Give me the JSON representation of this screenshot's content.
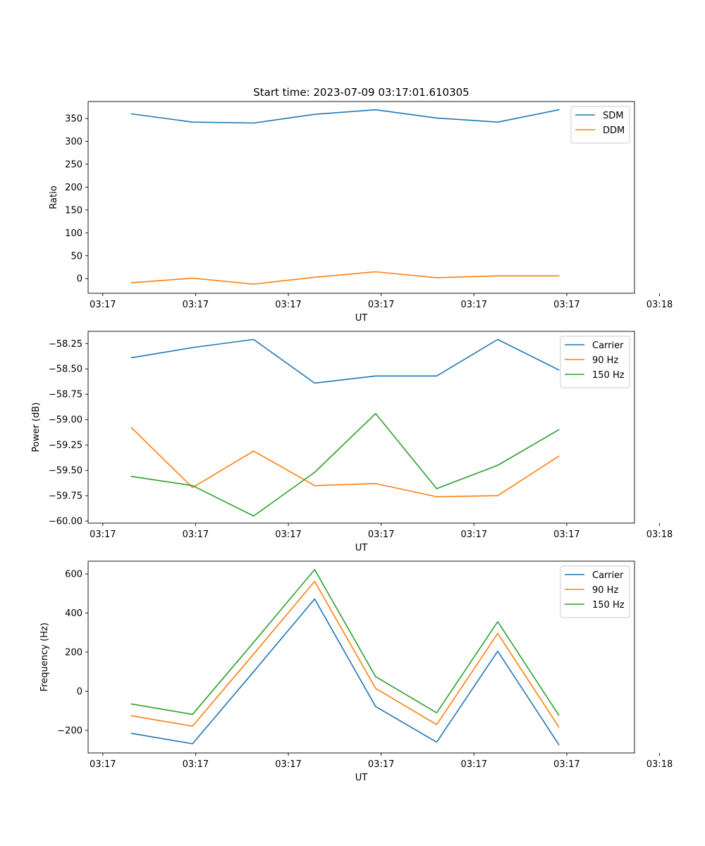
{
  "chart_data": [
    {
      "type": "line",
      "title": "Start time: 2023-07-09 03:17:01.610305",
      "xlabel": "UT",
      "ylabel": "Ratio",
      "x": [
        1,
        2,
        3,
        4,
        5,
        6,
        7,
        8
      ],
      "xlim": [
        0.29,
        9.24
      ],
      "xticks": [
        0.53,
        2.05,
        3.57,
        5.09,
        6.61,
        8.13,
        9.65
      ],
      "xtick_labels": [
        "03:17",
        "03:17",
        "03:17",
        "03:17",
        "03:17",
        "03:17",
        "03:18"
      ],
      "ylim": [
        -32,
        387
      ],
      "yticks": [
        0,
        50,
        100,
        150,
        200,
        250,
        300,
        350
      ],
      "ytick_labels": [
        "0",
        "50",
        "100",
        "150",
        "200",
        "250",
        "300",
        "350"
      ],
      "grid": false,
      "legend_position": "top-right",
      "series": [
        {
          "name": "SDM",
          "color": "#1f77b4",
          "values": [
            360,
            342,
            340,
            359,
            369,
            351,
            342,
            369
          ]
        },
        {
          "name": "DDM",
          "color": "#ff7f0e",
          "values": [
            -9,
            1,
            -12,
            3,
            15,
            2,
            6,
            6
          ]
        }
      ]
    },
    {
      "type": "line",
      "title": "",
      "xlabel": "UT",
      "ylabel": "Power (dB)",
      "x": [
        1,
        2,
        3,
        4,
        5,
        6,
        7,
        8
      ],
      "xlim": [
        0.29,
        9.24
      ],
      "xticks": [
        0.53,
        2.05,
        3.57,
        5.09,
        6.61,
        8.13,
        9.65
      ],
      "xtick_labels": [
        "03:17",
        "03:17",
        "03:17",
        "03:17",
        "03:17",
        "03:17",
        "03:18"
      ],
      "ylim": [
        -60.02,
        -58.13
      ],
      "yticks": [
        -60.0,
        -59.75,
        -59.5,
        -59.25,
        -59.0,
        -58.75,
        -58.5,
        -58.25
      ],
      "ytick_labels": [
        "−60.00",
        "−59.75",
        "−59.50",
        "−59.25",
        "−59.00",
        "−58.75",
        "−58.50",
        "−58.25"
      ],
      "grid": false,
      "legend_position": "top-right",
      "series": [
        {
          "name": "Carrier",
          "color": "#1f77b4",
          "values": [
            -58.39,
            -58.29,
            -58.21,
            -58.64,
            -58.57,
            -58.57,
            -58.21,
            -58.51
          ]
        },
        {
          "name": "90 Hz",
          "color": "#ff7f0e",
          "values": [
            -59.08,
            -59.67,
            -59.31,
            -59.65,
            -59.63,
            -59.76,
            -59.75,
            -59.36
          ]
        },
        {
          "name": "150 Hz",
          "color": "#2ca02c",
          "values": [
            -59.56,
            -59.65,
            -59.95,
            -59.52,
            -58.94,
            -59.68,
            -59.45,
            -59.1
          ]
        }
      ]
    },
    {
      "type": "line",
      "title": "",
      "xlabel": "UT",
      "ylabel": "Frequency (Hz)",
      "x": [
        1,
        2,
        3,
        4,
        5,
        6,
        7,
        8
      ],
      "xlim": [
        0.29,
        9.24
      ],
      "xticks": [
        0.53,
        2.05,
        3.57,
        5.09,
        6.61,
        8.13,
        9.65
      ],
      "xtick_labels": [
        "03:17",
        "03:17",
        "03:17",
        "03:17",
        "03:17",
        "03:17",
        "03:18"
      ],
      "ylim": [
        -315,
        665
      ],
      "yticks": [
        -200,
        0,
        200,
        400,
        600
      ],
      "ytick_labels": [
        "−200",
        "0",
        "200",
        "400",
        "600"
      ],
      "grid": false,
      "legend_position": "top-right",
      "series": [
        {
          "name": "Carrier",
          "color": "#1f77b4",
          "values": [
            -215,
            -268,
            100,
            472,
            -78,
            -260,
            205,
            -272
          ]
        },
        {
          "name": "90 Hz",
          "color": "#ff7f0e",
          "values": [
            -125,
            -178,
            190,
            562,
            15,
            -170,
            296,
            -182
          ]
        },
        {
          "name": "150 Hz",
          "color": "#2ca02c",
          "values": [
            -65,
            -118,
            250,
            622,
            75,
            -110,
            356,
            -122
          ]
        }
      ]
    }
  ]
}
